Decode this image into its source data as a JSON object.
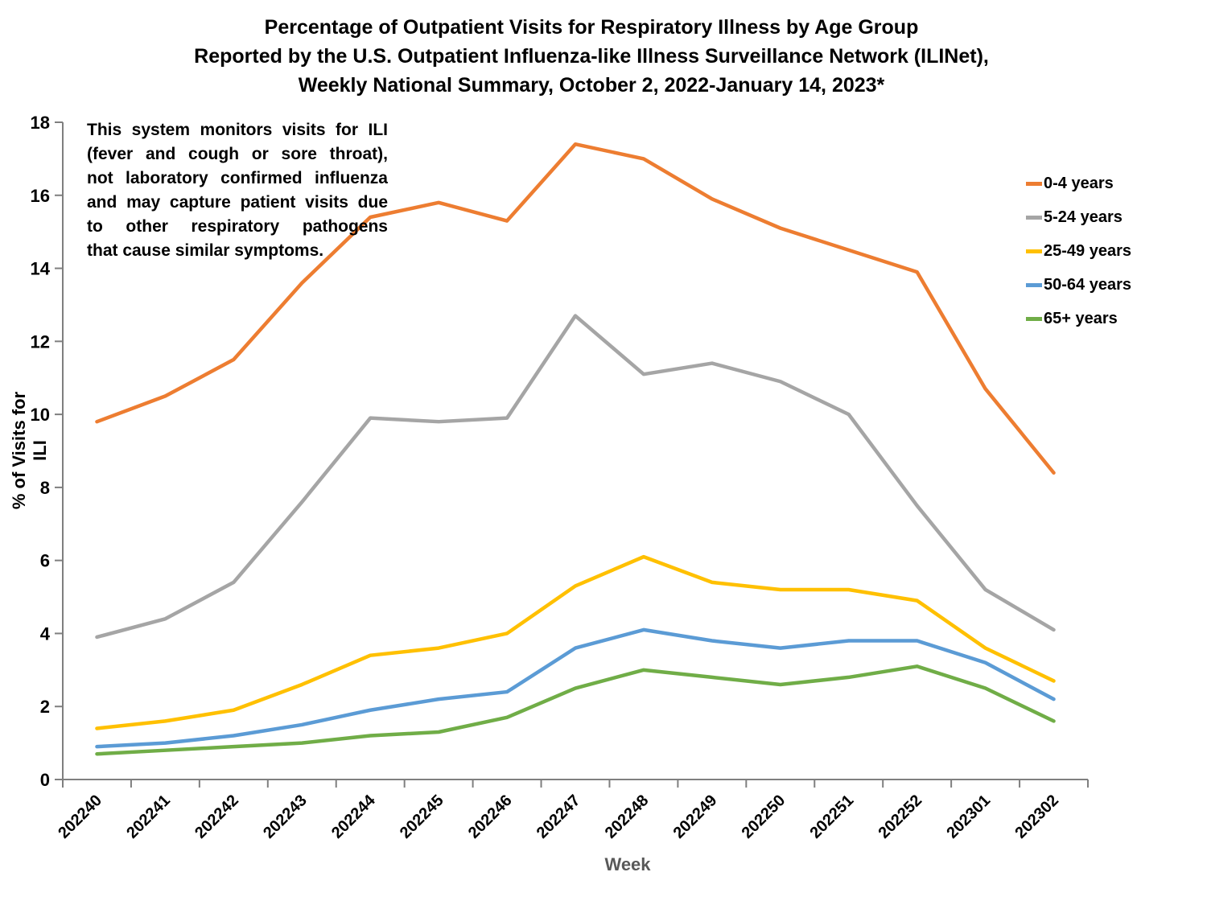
{
  "title": {
    "line1": "Percentage of Outpatient Visits for Respiratory Illness by Age Group",
    "line2": "Reported by the U.S. Outpatient Influenza-like Illness Surveillance Network (ILINet),",
    "line3": "Weekly National Summary, October 2, 2022-January 14, 2023*"
  },
  "annotation": {
    "full_text": "This system monitors visits for ILI (fever and cough or sore throat), not laboratory confirmed influenza and may capture patient visits due to other respiratory pathogens that cause similar symptoms.",
    "lines": [
      "This system monitors visits for ILI",
      "(fever and cough or sore throat),",
      "not laboratory confirmed influenza",
      "and may capture patient visits due",
      "to other respiratory pathogens",
      "that cause similar symptoms."
    ]
  },
  "colors": {
    "axis": "#7F7F7F",
    "x_axis_title": "#595959",
    "orange": "#ED7D31",
    "gray": "#A5A5A5",
    "yellow": "#FFC000",
    "blue": "#5B9BD5",
    "green": "#70AD47"
  },
  "chart_data": {
    "type": "line",
    "title": "Percentage of Outpatient Visits for Respiratory Illness by Age Group Reported by the U.S. Outpatient Influenza-like Illness Surveillance Network (ILINet), Weekly National Summary, October 2, 2022-January 14, 2023*",
    "xlabel": "Week",
    "ylabel": "% of Visits for ILI",
    "ylim": [
      0,
      18
    ],
    "ytick_step": 2,
    "grid": false,
    "legend_position": "right",
    "categories": [
      "202240",
      "202241",
      "202242",
      "202243",
      "202244",
      "202245",
      "202246",
      "202247",
      "202248",
      "202249",
      "202250",
      "202251",
      "202252",
      "202301",
      "202302"
    ],
    "series": [
      {
        "name": "0-4 years",
        "color": "#ED7D31",
        "values": [
          9.8,
          10.5,
          11.5,
          13.6,
          15.4,
          15.8,
          15.3,
          17.4,
          17.0,
          15.9,
          15.1,
          14.5,
          13.9,
          10.7,
          8.4
        ]
      },
      {
        "name": "5-24 years",
        "color": "#A5A5A5",
        "values": [
          3.9,
          4.4,
          5.4,
          7.6,
          9.9,
          9.8,
          9.9,
          12.7,
          11.1,
          11.4,
          10.9,
          10.0,
          7.5,
          5.2,
          4.1
        ]
      },
      {
        "name": "25-49 years",
        "color": "#FFC000",
        "values": [
          1.4,
          1.6,
          1.9,
          2.6,
          3.4,
          3.6,
          4.0,
          5.3,
          6.1,
          5.4,
          5.2,
          5.2,
          4.9,
          3.6,
          2.7
        ]
      },
      {
        "name": "50-64 years",
        "color": "#5B9BD5",
        "values": [
          0.9,
          1.0,
          1.2,
          1.5,
          1.9,
          2.2,
          2.4,
          3.6,
          4.1,
          3.8,
          3.6,
          3.8,
          3.8,
          3.2,
          2.2
        ]
      },
      {
        "name": "65+ years",
        "color": "#70AD47",
        "values": [
          0.7,
          0.8,
          0.9,
          1.0,
          1.2,
          1.3,
          1.7,
          2.5,
          3.0,
          2.8,
          2.6,
          2.8,
          3.1,
          2.5,
          1.6
        ]
      }
    ]
  }
}
